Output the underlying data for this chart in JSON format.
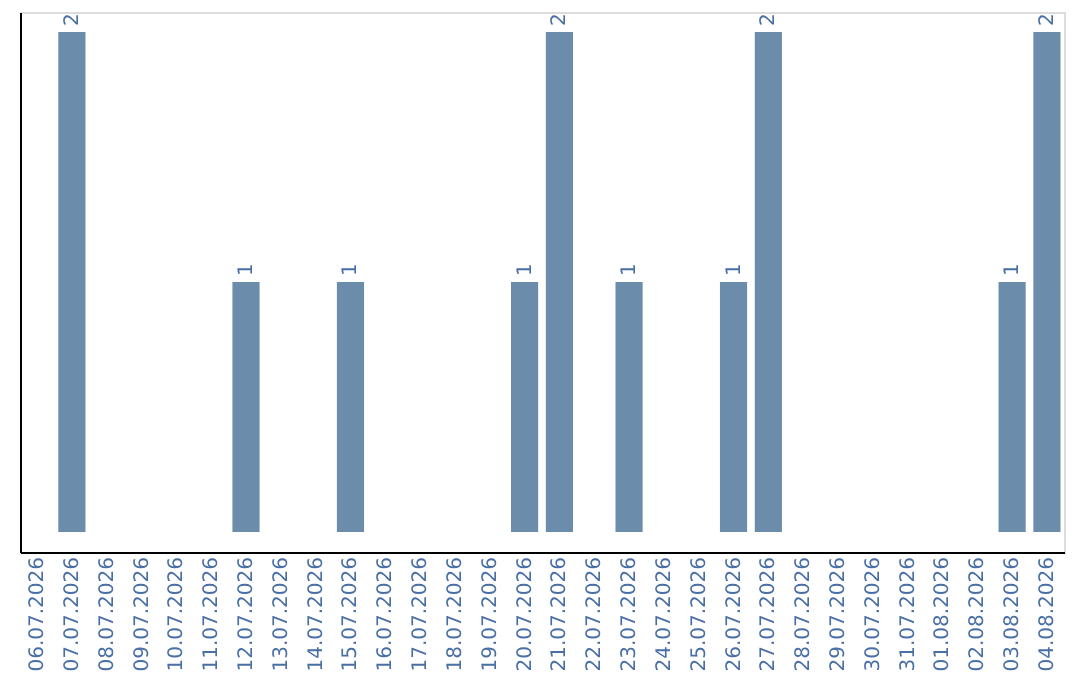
{
  "chart_data": {
    "type": "bar",
    "categories": [
      "06.07.2026",
      "07.07.2026",
      "08.07.2026",
      "09.07.2026",
      "10.07.2026",
      "11.07.2026",
      "12.07.2026",
      "13.07.2026",
      "14.07.2026",
      "15.07.2026",
      "16.07.2026",
      "17.07.2026",
      "18.07.2026",
      "19.07.2026",
      "20.07.2026",
      "21.07.2026",
      "22.07.2026",
      "23.07.2026",
      "24.07.2026",
      "25.07.2026",
      "26.07.2026",
      "27.07.2026",
      "28.07.2026",
      "29.07.2026",
      "30.07.2026",
      "31.07.2026",
      "01.08.2026",
      "02.08.2026",
      "03.08.2026",
      "04.08.2026"
    ],
    "values": [
      0,
      2,
      0,
      0,
      0,
      0,
      1,
      0,
      0,
      1,
      0,
      0,
      0,
      0,
      1,
      2,
      0,
      1,
      0,
      0,
      1,
      2,
      0,
      0,
      0,
      0,
      0,
      0,
      1,
      2
    ],
    "value_labels": [
      null,
      "2",
      null,
      null,
      null,
      null,
      "1",
      null,
      null,
      "1",
      null,
      null,
      null,
      null,
      "1",
      "2",
      null,
      "1",
      null,
      null,
      "1",
      "2",
      null,
      null,
      null,
      null,
      null,
      null,
      "1",
      "2"
    ],
    "color": "#6b8cab",
    "tick_labels": "x",
    "grid": false
  }
}
